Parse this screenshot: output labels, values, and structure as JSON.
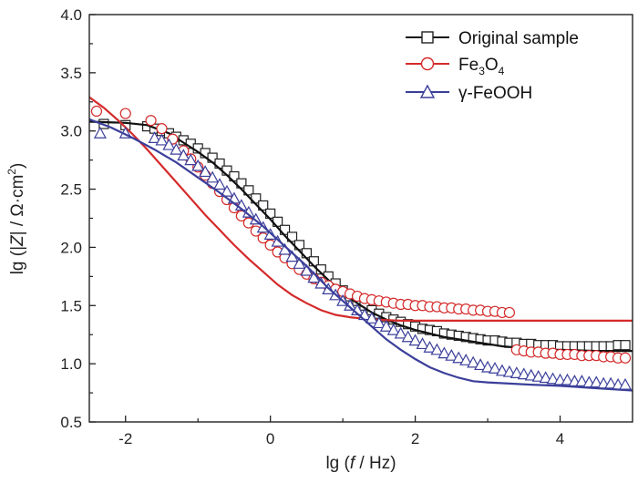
{
  "chart_data": {
    "type": "line",
    "title": "",
    "xlabel": {
      "prefix": "lg (",
      "var": "f",
      "suffix": " / Hz)"
    },
    "ylabel": {
      "prefix": "lg (|",
      "var": "Z",
      "mid": "| / Ω·cm",
      "sup": "2",
      "suffix": ")"
    },
    "xlim": [
      -2.5,
      5
    ],
    "ylim": [
      0.5,
      4.0
    ],
    "x_ticks": [
      -2,
      0,
      2,
      4
    ],
    "x_tick_labels": [
      "-2",
      "0",
      "2",
      "4"
    ],
    "y_ticks": [
      0.5,
      1.0,
      1.5,
      2.0,
      2.5,
      3.0,
      3.5,
      4.0
    ],
    "y_tick_labels": [
      "0.5",
      "1.0",
      "1.5",
      "2.0",
      "2.5",
      "3.0",
      "3.5",
      "4.0"
    ],
    "legend_position": "top-right",
    "series": [
      {
        "name": "Original sample",
        "legend": {
          "text": "Original sample"
        },
        "marker": "square",
        "marker_color": "#222222",
        "fit_color": "#111111",
        "points": [
          [
            -2.3,
            3.06
          ],
          [
            -2.0,
            3.05
          ],
          [
            -1.7,
            3.04
          ],
          [
            -1.6,
            3.02
          ],
          [
            -1.5,
            3.0
          ],
          [
            -1.4,
            2.98
          ],
          [
            -1.3,
            2.95
          ],
          [
            -1.2,
            2.92
          ],
          [
            -1.1,
            2.89
          ],
          [
            -1.0,
            2.85
          ],
          [
            -0.9,
            2.81
          ],
          [
            -0.8,
            2.77
          ],
          [
            -0.7,
            2.72
          ],
          [
            -0.6,
            2.66
          ],
          [
            -0.5,
            2.61
          ],
          [
            -0.4,
            2.55
          ],
          [
            -0.3,
            2.49
          ],
          [
            -0.2,
            2.42
          ],
          [
            -0.1,
            2.36
          ],
          [
            0.0,
            2.29
          ],
          [
            0.1,
            2.22
          ],
          [
            0.2,
            2.15
          ],
          [
            0.3,
            2.09
          ],
          [
            0.4,
            2.02
          ],
          [
            0.5,
            1.95
          ],
          [
            0.6,
            1.88
          ],
          [
            0.7,
            1.81
          ],
          [
            0.8,
            1.75
          ],
          [
            0.9,
            1.69
          ],
          [
            1.0,
            1.63
          ],
          [
            1.1,
            1.58
          ],
          [
            1.2,
            1.54
          ],
          [
            1.3,
            1.5
          ],
          [
            1.4,
            1.46
          ],
          [
            1.5,
            1.43
          ],
          [
            1.6,
            1.4
          ],
          [
            1.7,
            1.38
          ],
          [
            1.8,
            1.36
          ],
          [
            1.9,
            1.34
          ],
          [
            2.0,
            1.32
          ],
          [
            2.1,
            1.3
          ],
          [
            2.2,
            1.29
          ],
          [
            2.3,
            1.28
          ],
          [
            2.4,
            1.26
          ],
          [
            2.5,
            1.25
          ],
          [
            2.6,
            1.24
          ],
          [
            2.7,
            1.23
          ],
          [
            2.8,
            1.22
          ],
          [
            2.9,
            1.21
          ],
          [
            3.0,
            1.2
          ],
          [
            3.1,
            1.2
          ],
          [
            3.2,
            1.19
          ],
          [
            3.3,
            1.18
          ],
          [
            3.4,
            1.18
          ],
          [
            3.5,
            1.17
          ],
          [
            3.6,
            1.17
          ],
          [
            3.7,
            1.16
          ],
          [
            3.8,
            1.16
          ],
          [
            3.9,
            1.16
          ],
          [
            4.0,
            1.15
          ],
          [
            4.1,
            1.15
          ],
          [
            4.2,
            1.15
          ],
          [
            4.3,
            1.15
          ],
          [
            4.4,
            1.15
          ],
          [
            4.5,
            1.15
          ],
          [
            4.6,
            1.15
          ],
          [
            4.7,
            1.15
          ],
          [
            4.8,
            1.16
          ],
          [
            4.9,
            1.16
          ]
        ],
        "fit": [
          [
            -2.5,
            3.08
          ],
          [
            -2.0,
            3.07
          ],
          [
            -1.7,
            3.05
          ],
          [
            -1.4,
            2.98
          ],
          [
            -1.2,
            2.9
          ],
          [
            -1.0,
            2.82
          ],
          [
            -0.8,
            2.73
          ],
          [
            -0.6,
            2.62
          ],
          [
            -0.4,
            2.5
          ],
          [
            -0.2,
            2.37
          ],
          [
            0.0,
            2.24
          ],
          [
            0.2,
            2.1
          ],
          [
            0.4,
            1.97
          ],
          [
            0.6,
            1.84
          ],
          [
            0.8,
            1.72
          ],
          [
            1.0,
            1.61
          ],
          [
            1.2,
            1.52
          ],
          [
            1.4,
            1.44
          ],
          [
            1.6,
            1.38
          ],
          [
            1.8,
            1.33
          ],
          [
            2.0,
            1.29
          ],
          [
            2.2,
            1.26
          ],
          [
            2.4,
            1.23
          ],
          [
            2.6,
            1.21
          ],
          [
            2.8,
            1.19
          ],
          [
            3.0,
            1.17
          ],
          [
            3.2,
            1.15
          ],
          [
            3.4,
            1.14
          ],
          [
            3.6,
            1.13
          ],
          [
            3.8,
            1.12
          ],
          [
            4.0,
            1.12
          ],
          [
            4.5,
            1.11
          ],
          [
            5.0,
            1.11
          ]
        ]
      },
      {
        "name": "Fe3O4",
        "legend": {
          "text": "Fe",
          "sub1": "3",
          "mid": "O",
          "sub2": "4"
        },
        "marker": "circle",
        "marker_color": "#d42a2a",
        "fit_color": "#d42a2a",
        "points": [
          [
            -2.4,
            3.17
          ],
          [
            -2.0,
            3.15
          ],
          [
            -1.65,
            3.09
          ],
          [
            -1.5,
            3.02
          ],
          [
            -1.35,
            2.93
          ],
          [
            -1.2,
            2.83
          ],
          [
            -1.1,
            2.76
          ],
          [
            -1.0,
            2.69
          ],
          [
            -0.9,
            2.62
          ],
          [
            -0.8,
            2.55
          ],
          [
            -0.7,
            2.48
          ],
          [
            -0.6,
            2.41
          ],
          [
            -0.5,
            2.34
          ],
          [
            -0.4,
            2.27
          ],
          [
            -0.3,
            2.21
          ],
          [
            -0.2,
            2.14
          ],
          [
            -0.1,
            2.08
          ],
          [
            0.0,
            2.02
          ],
          [
            0.1,
            1.96
          ],
          [
            0.2,
            1.91
          ],
          [
            0.3,
            1.86
          ],
          [
            0.4,
            1.81
          ],
          [
            0.5,
            1.77
          ],
          [
            0.6,
            1.73
          ],
          [
            0.7,
            1.7
          ],
          [
            0.8,
            1.67
          ],
          [
            0.9,
            1.64
          ],
          [
            1.0,
            1.62
          ],
          [
            1.1,
            1.6
          ],
          [
            1.2,
            1.58
          ],
          [
            1.3,
            1.56
          ],
          [
            1.4,
            1.55
          ],
          [
            1.5,
            1.54
          ],
          [
            1.6,
            1.53
          ],
          [
            1.7,
            1.52
          ],
          [
            1.8,
            1.51
          ],
          [
            1.9,
            1.51
          ],
          [
            2.0,
            1.5
          ],
          [
            2.1,
            1.5
          ],
          [
            2.2,
            1.49
          ],
          [
            2.3,
            1.49
          ],
          [
            2.4,
            1.48
          ],
          [
            2.5,
            1.48
          ],
          [
            2.6,
            1.47
          ],
          [
            2.7,
            1.47
          ],
          [
            2.8,
            1.46
          ],
          [
            2.9,
            1.46
          ],
          [
            3.0,
            1.45
          ],
          [
            3.1,
            1.45
          ],
          [
            3.2,
            1.44
          ],
          [
            3.3,
            1.44
          ],
          [
            3.4,
            1.12
          ],
          [
            3.5,
            1.11
          ],
          [
            3.6,
            1.1
          ],
          [
            3.7,
            1.1
          ],
          [
            3.8,
            1.09
          ],
          [
            3.9,
            1.09
          ],
          [
            4.0,
            1.08
          ],
          [
            4.1,
            1.08
          ],
          [
            4.2,
            1.08
          ],
          [
            4.3,
            1.07
          ],
          [
            4.4,
            1.07
          ],
          [
            4.5,
            1.07
          ],
          [
            4.6,
            1.06
          ],
          [
            4.7,
            1.06
          ],
          [
            4.8,
            1.05
          ],
          [
            4.9,
            1.05
          ]
        ],
        "fit": [
          [
            -2.5,
            3.29
          ],
          [
            -2.3,
            3.2
          ],
          [
            -2.1,
            3.09
          ],
          [
            -1.9,
            2.97
          ],
          [
            -1.7,
            2.84
          ],
          [
            -1.5,
            2.7
          ],
          [
            -1.3,
            2.56
          ],
          [
            -1.1,
            2.42
          ],
          [
            -0.9,
            2.28
          ],
          [
            -0.7,
            2.15
          ],
          [
            -0.5,
            2.02
          ],
          [
            -0.3,
            1.9
          ],
          [
            -0.1,
            1.79
          ],
          [
            0.1,
            1.68
          ],
          [
            0.3,
            1.59
          ],
          [
            0.5,
            1.52
          ],
          [
            0.7,
            1.46
          ],
          [
            0.9,
            1.42
          ],
          [
            1.1,
            1.4
          ],
          [
            1.4,
            1.38
          ],
          [
            1.8,
            1.37
          ],
          [
            2.5,
            1.37
          ],
          [
            3.0,
            1.37
          ],
          [
            4.0,
            1.37
          ],
          [
            5.0,
            1.37
          ]
        ]
      },
      {
        "name": "γ-FeOOH",
        "legend": {
          "text": "γ-FeOOH"
        },
        "marker": "triangle",
        "marker_color": "#3b3f9a",
        "fit_color": "#3b3f9a",
        "points": [
          [
            -2.35,
            2.98
          ],
          [
            -2.0,
            2.98
          ],
          [
            -1.6,
            2.94
          ],
          [
            -1.5,
            2.92
          ],
          [
            -1.4,
            2.88
          ],
          [
            -1.3,
            2.84
          ],
          [
            -1.2,
            2.79
          ],
          [
            -1.1,
            2.75
          ],
          [
            -1.0,
            2.7
          ],
          [
            -0.9,
            2.65
          ],
          [
            -0.8,
            2.6
          ],
          [
            -0.7,
            2.54
          ],
          [
            -0.6,
            2.48
          ],
          [
            -0.5,
            2.42
          ],
          [
            -0.4,
            2.36
          ],
          [
            -0.3,
            2.3
          ],
          [
            -0.2,
            2.24
          ],
          [
            -0.1,
            2.17
          ],
          [
            0.0,
            2.11
          ],
          [
            0.1,
            2.05
          ],
          [
            0.2,
            1.98
          ],
          [
            0.3,
            1.92
          ],
          [
            0.4,
            1.86
          ],
          [
            0.5,
            1.8
          ],
          [
            0.6,
            1.74
          ],
          [
            0.7,
            1.69
          ],
          [
            0.8,
            1.64
          ],
          [
            0.9,
            1.59
          ],
          [
            1.0,
            1.54
          ],
          [
            1.1,
            1.5
          ],
          [
            1.2,
            1.46
          ],
          [
            1.3,
            1.42
          ],
          [
            1.4,
            1.39
          ],
          [
            1.5,
            1.35
          ],
          [
            1.6,
            1.32
          ],
          [
            1.7,
            1.29
          ],
          [
            1.8,
            1.26
          ],
          [
            1.9,
            1.23
          ],
          [
            2.0,
            1.2
          ],
          [
            2.1,
            1.17
          ],
          [
            2.2,
            1.14
          ],
          [
            2.3,
            1.12
          ],
          [
            2.4,
            1.09
          ],
          [
            2.5,
            1.07
          ],
          [
            2.6,
            1.05
          ],
          [
            2.7,
            1.03
          ],
          [
            2.8,
            1.01
          ],
          [
            2.9,
            0.99
          ],
          [
            3.0,
            0.97
          ],
          [
            3.1,
            0.96
          ],
          [
            3.2,
            0.94
          ],
          [
            3.3,
            0.93
          ],
          [
            3.4,
            0.92
          ],
          [
            3.5,
            0.91
          ],
          [
            3.6,
            0.9
          ],
          [
            3.7,
            0.89
          ],
          [
            3.8,
            0.88
          ],
          [
            3.9,
            0.87
          ],
          [
            4.0,
            0.86
          ],
          [
            4.1,
            0.86
          ],
          [
            4.2,
            0.85
          ],
          [
            4.3,
            0.85
          ],
          [
            4.4,
            0.84
          ],
          [
            4.5,
            0.84
          ],
          [
            4.6,
            0.83
          ],
          [
            4.7,
            0.83
          ],
          [
            4.8,
            0.82
          ],
          [
            4.9,
            0.82
          ]
        ],
        "fit": [
          [
            -2.5,
            3.1
          ],
          [
            -2.2,
            3.03
          ],
          [
            -1.9,
            2.94
          ],
          [
            -1.6,
            2.84
          ],
          [
            -1.3,
            2.73
          ],
          [
            -1.0,
            2.6
          ],
          [
            -0.7,
            2.47
          ],
          [
            -0.4,
            2.33
          ],
          [
            -0.1,
            2.18
          ],
          [
            0.2,
            2.01
          ],
          [
            0.5,
            1.84
          ],
          [
            0.8,
            1.65
          ],
          [
            1.0,
            1.54
          ],
          [
            1.2,
            1.43
          ],
          [
            1.4,
            1.32
          ],
          [
            1.6,
            1.21
          ],
          [
            1.8,
            1.12
          ],
          [
            2.0,
            1.04
          ],
          [
            2.2,
            0.97
          ],
          [
            2.4,
            0.92
          ],
          [
            2.6,
            0.88
          ],
          [
            2.8,
            0.85
          ],
          [
            3.0,
            0.84
          ],
          [
            3.3,
            0.83
          ],
          [
            3.6,
            0.82
          ],
          [
            4.0,
            0.81
          ],
          [
            4.5,
            0.79
          ],
          [
            5.0,
            0.77
          ]
        ]
      }
    ]
  }
}
